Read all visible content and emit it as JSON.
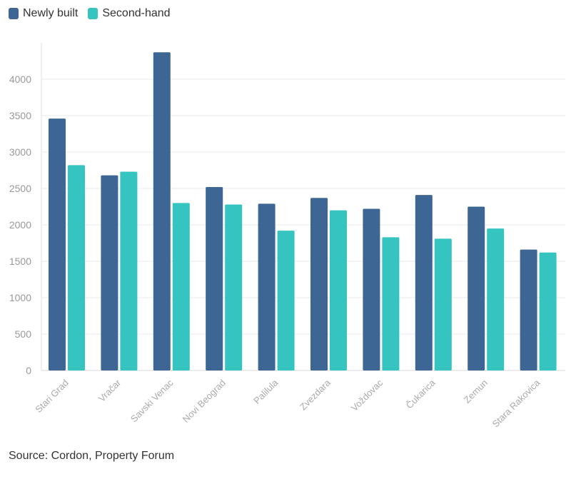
{
  "chart_data": {
    "type": "bar",
    "title": "",
    "xlabel": "",
    "ylabel": "",
    "categories": [
      "Stari Grad",
      "Vračar",
      "Savski Venac",
      "Novi Beograd",
      "Palilula",
      "Zvezdara",
      "Voždovac",
      "Čukarica",
      "Zemun",
      "Stara Rakovica"
    ],
    "series": [
      {
        "name": "Newly built",
        "color": "#3e6694",
        "values": [
          3460,
          2680,
          4370,
          2520,
          2290,
          2370,
          2220,
          2410,
          2250,
          1660
        ]
      },
      {
        "name": "Second-hand",
        "color": "#35c4c0",
        "values": [
          2820,
          2730,
          2300,
          2280,
          1920,
          2200,
          1830,
          1810,
          1950,
          1620
        ]
      }
    ],
    "ylim": [
      0,
      4500
    ],
    "yticks": [
      0,
      500,
      1000,
      1500,
      2000,
      2500,
      3000,
      3500,
      4000
    ],
    "grid": true,
    "legend": "top-left"
  },
  "source": "Source: Cordon, Property Forum"
}
